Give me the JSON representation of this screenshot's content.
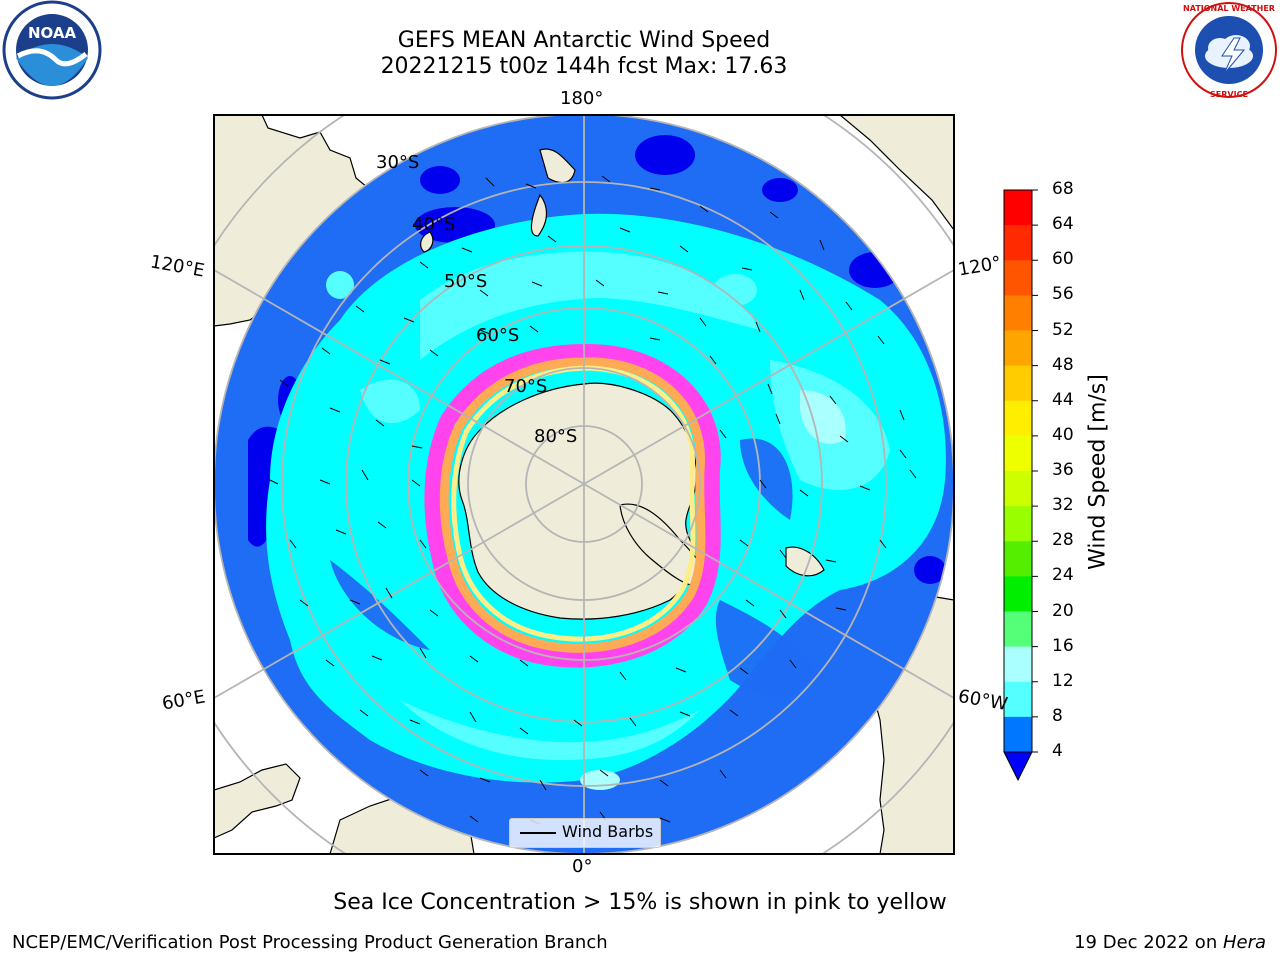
{
  "title": {
    "line1": "GEFS MEAN Antarctic Wind Speed",
    "line2": "20221215 t00z 144h fcst   Max: 17.63"
  },
  "map_labels": {
    "lon_top": "180°",
    "lon_bottom": "0°",
    "lon_left_upper": "120°E",
    "lon_left_lower": "60°E",
    "lon_right_upper": "120°",
    "lon_right_lower": "60°W",
    "lat_30": "30°S",
    "lat_40": "40°S",
    "lat_50": "50°S",
    "lat_60": "60°S",
    "lat_70": "70°S",
    "lat_80": "80°S"
  },
  "legend": {
    "label": "Wind Barbs"
  },
  "colorbar": {
    "title": "Wind Speed [m/s]",
    "ticks": [
      "68",
      "64",
      "60",
      "56",
      "52",
      "48",
      "44",
      "40",
      "36",
      "32",
      "28",
      "24",
      "20",
      "16",
      "12",
      "8",
      "4"
    ],
    "colors": [
      "#ff0000",
      "#ff2a00",
      "#ff5500",
      "#ff7f00",
      "#ffa500",
      "#ffcc00",
      "#ffee00",
      "#eeff00",
      "#ccff00",
      "#99ff00",
      "#55ee00",
      "#00ee00",
      "#55ff77",
      "#aaffff",
      "#55ffff",
      "#00ffff",
      "#0077ff"
    ],
    "under_color": "#0000ff"
  },
  "caption": "Sea Ice Concentration > 15% is shown in pink to yellow",
  "footer": {
    "left": "NCEP/EMC/Verification Post Processing Product Generation Branch",
    "right_date": "19 Dec 2022 on ",
    "right_host": "Hera"
  },
  "logos": {
    "left": "noaa-logo",
    "right": "national-weather-service-logo"
  }
}
